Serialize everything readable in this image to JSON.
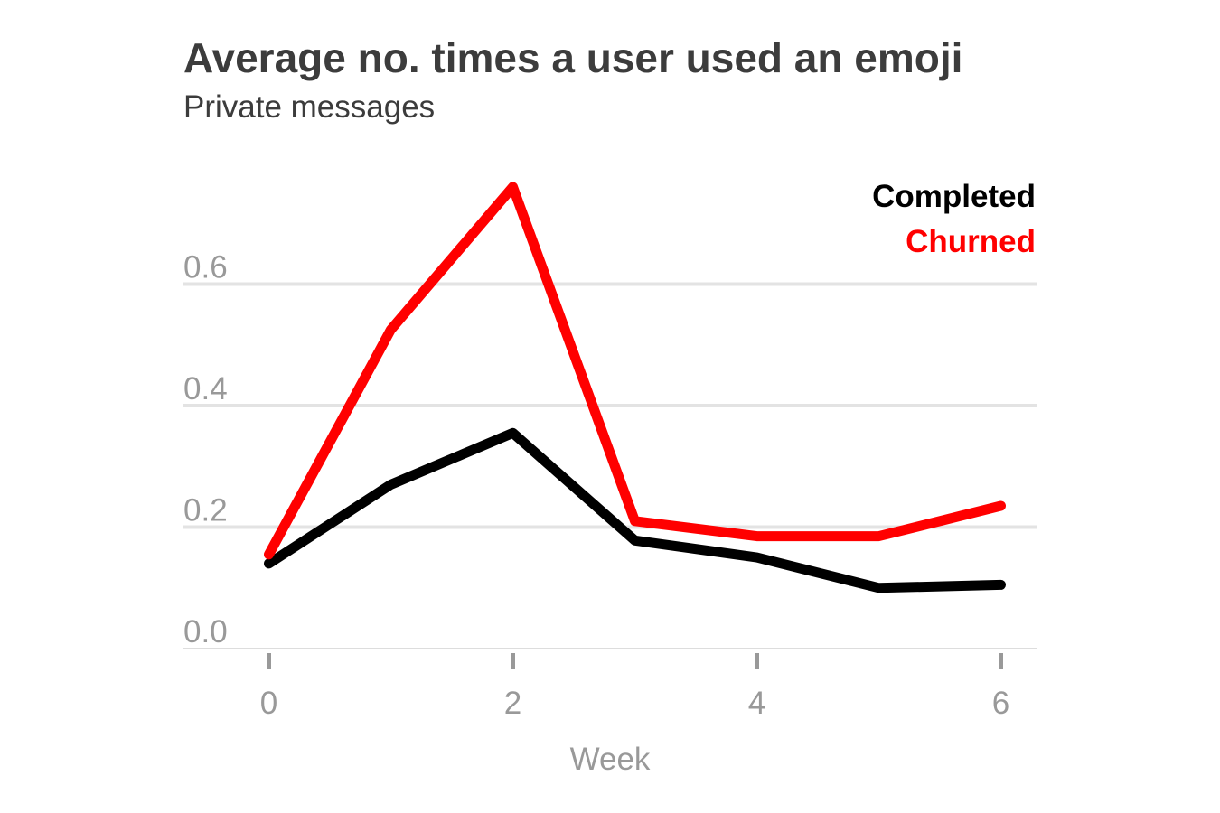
{
  "chart_data": {
    "type": "line",
    "title": "Average no. times a user used an emoji",
    "subtitle": "Private messages",
    "xlabel": "Week",
    "ylabel": "",
    "x": [
      0,
      1,
      2,
      3,
      4,
      5,
      6
    ],
    "xlim": [
      -0.7,
      6.3
    ],
    "ylim": [
      0,
      0.8
    ],
    "x_ticks": [
      0,
      2,
      4,
      6
    ],
    "x_tick_labels": [
      "0",
      "2",
      "4",
      "6"
    ],
    "y_ticks": [
      0,
      0.2,
      0.4,
      0.6
    ],
    "y_tick_labels": [
      "0.0",
      "0.2",
      "0.4",
      "0.6"
    ],
    "grid": true,
    "legend_placement": "top-right",
    "series": [
      {
        "name": "Completed",
        "color": "#000000",
        "values": [
          0.14,
          0.27,
          0.355,
          0.178,
          0.15,
          0.1,
          0.105
        ]
      },
      {
        "name": "Churned",
        "color": "#ff0000",
        "values": [
          0.155,
          0.525,
          0.76,
          0.21,
          0.185,
          0.185,
          0.235
        ]
      }
    ]
  }
}
